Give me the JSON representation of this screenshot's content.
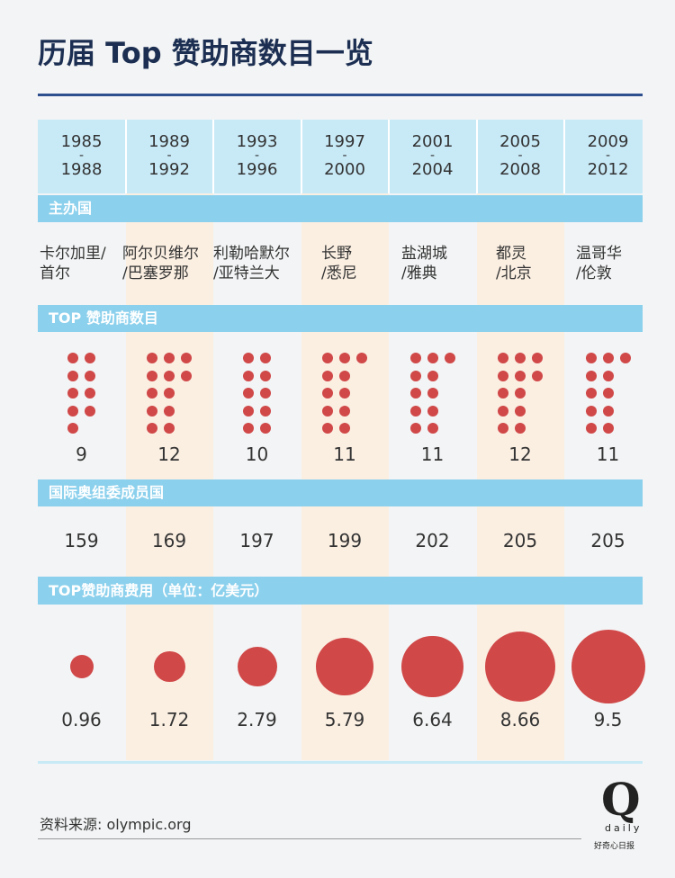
{
  "title": "历届 Top 赞助商数目一览",
  "bands": {
    "host": "主办国",
    "sponsors": "TOP 赞助商数目",
    "members": "国际奥组委成员国",
    "fees": "TOP赞助商费用（单位：亿美元）"
  },
  "colors": {
    "dot": "#d04848",
    "band": "#8bd0ec",
    "header": "#c8eaf7",
    "stripe": "#fbefe2",
    "title": "#1c2f52"
  },
  "chart_data": {
    "type": "table",
    "periods": [
      {
        "start": "1985",
        "sep": "-",
        "end": "1988"
      },
      {
        "start": "1989",
        "sep": "-",
        "end": "1992"
      },
      {
        "start": "1993",
        "sep": "-",
        "end": "1996"
      },
      {
        "start": "1997",
        "sep": "-",
        "end": "2000"
      },
      {
        "start": "2001",
        "sep": "-",
        "end": "2004"
      },
      {
        "start": "2005",
        "sep": "-",
        "end": "2008"
      },
      {
        "start": "2009",
        "sep": "-",
        "end": "2012"
      }
    ],
    "hosts": [
      [
        "卡尔加里/",
        "首尔"
      ],
      [
        "阿尔贝维尔",
        "/巴塞罗那"
      ],
      [
        "利勒哈默尔",
        "/亚特兰大"
      ],
      [
        "长野",
        "/悉尼"
      ],
      [
        "盐湖城",
        "/雅典"
      ],
      [
        "都灵",
        "/北京"
      ],
      [
        "温哥华",
        "/伦敦"
      ]
    ],
    "sponsor_counts": [
      9,
      12,
      10,
      11,
      11,
      12,
      11
    ],
    "ioc_members": [
      159,
      169,
      197,
      199,
      202,
      205,
      205
    ],
    "fees": [
      0.96,
      1.72,
      2.79,
      5.79,
      6.64,
      8.66,
      9.5
    ]
  },
  "source": "资料来源: olympic.org",
  "logo": {
    "letter": "Q",
    "word": "daily",
    "cn": "好奇心日报"
  }
}
